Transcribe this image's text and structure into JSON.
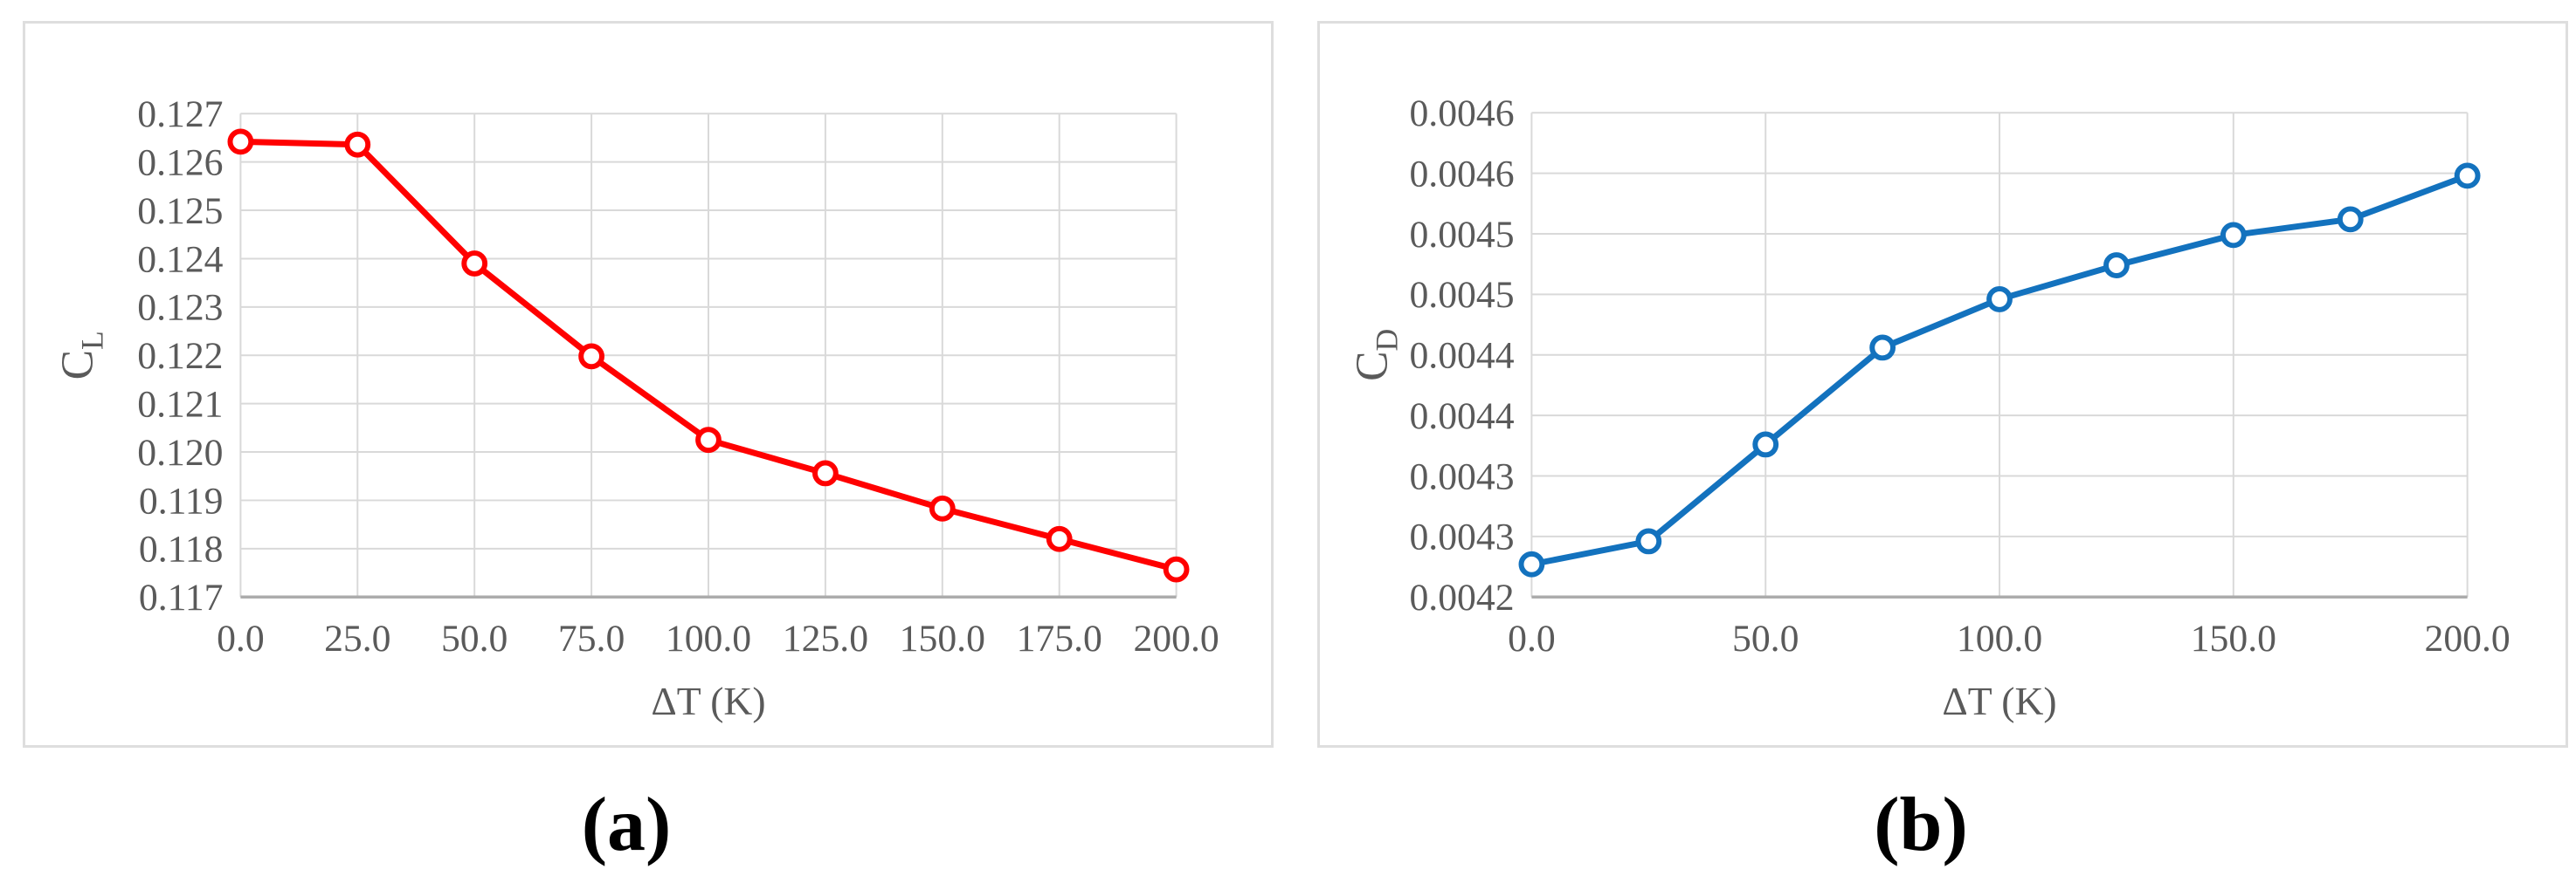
{
  "figure": {
    "background": "#ffffff",
    "border_color": "#dedede",
    "gridline_color": "#d9d9d9",
    "axis_line_color": "#acacac",
    "tick_text_color": "#5a5a5a",
    "caption_color": "#000000"
  },
  "chart_data": [
    {
      "type": "line",
      "caption": "(a)",
      "series": [
        {
          "name": "CL",
          "values": [
            0.1264,
            0.1264,
            0.1239,
            0.122,
            0.1203,
            0.1196,
            0.1188,
            0.1182,
            0.1176
          ]
        }
      ],
      "x": [
        0,
        25,
        50,
        75,
        100,
        125,
        150,
        175,
        200
      ],
      "y_plot_values": [
        0.12642,
        0.12636,
        0.1239,
        0.12198,
        0.12025,
        0.11956,
        0.11883,
        0.1182,
        0.11757
      ],
      "title": "",
      "xlabel": "ΔT (K)",
      "ylabel_main": "C",
      "ylabel_sub": "L",
      "xlim": [
        0,
        200
      ],
      "ylim": [
        0.117,
        0.127
      ],
      "grid": true,
      "legend": "none",
      "marker": "open-circle",
      "line_color": "#ff0000",
      "x_ticks": [
        {
          "value": 0,
          "label": "0.0"
        },
        {
          "value": 25,
          "label": "25.0"
        },
        {
          "value": 50,
          "label": "50.0"
        },
        {
          "value": 75,
          "label": "75.0"
        },
        {
          "value": 100,
          "label": "100.0"
        },
        {
          "value": 125,
          "label": "125.0"
        },
        {
          "value": 150,
          "label": "150.0"
        },
        {
          "value": 175,
          "label": "175.0"
        },
        {
          "value": 200,
          "label": "200.0"
        }
      ],
      "y_ticks": [
        {
          "value": 0.127,
          "label": "0.127"
        },
        {
          "value": 0.126,
          "label": "0.126"
        },
        {
          "value": 0.125,
          "label": "0.125"
        },
        {
          "value": 0.124,
          "label": "0.124"
        },
        {
          "value": 0.123,
          "label": "0.123"
        },
        {
          "value": 0.122,
          "label": "0.122"
        },
        {
          "value": 0.121,
          "label": "0.121"
        },
        {
          "value": 0.12,
          "label": "0.120"
        },
        {
          "value": 0.119,
          "label": "0.119"
        },
        {
          "value": 0.118,
          "label": "0.118"
        },
        {
          "value": 0.117,
          "label": "0.117"
        }
      ]
    },
    {
      "type": "line",
      "caption": "(b)",
      "series": [
        {
          "name": "CD",
          "values": [
            0.00428,
            0.0043,
            0.00438,
            0.00446,
            0.0045,
            0.00452,
            0.00455,
            0.00456,
            0.0046
          ]
        }
      ],
      "x": [
        0,
        25,
        50,
        75,
        100,
        125,
        150,
        175,
        200
      ],
      "y_plot_values": [
        0.004277,
        0.004296,
        0.004376,
        0.004456,
        0.004496,
        0.004524,
        0.004549,
        0.004562,
        0.004598
      ],
      "title": "",
      "xlabel": "ΔT (K)",
      "ylabel_main": "C",
      "ylabel_sub": "D",
      "xlim": [
        0,
        200
      ],
      "ylim": [
        0.00425,
        0.00465
      ],
      "grid": true,
      "legend": "none",
      "marker": "open-circle",
      "line_color": "#1372be",
      "x_ticks": [
        {
          "value": 0,
          "label": "0.0"
        },
        {
          "value": 50,
          "label": "50.0"
        },
        {
          "value": 100,
          "label": "100.0"
        },
        {
          "value": 150,
          "label": "150.0"
        },
        {
          "value": 200,
          "label": "200.0"
        }
      ],
      "y_ticks": [
        {
          "value": 0.00465,
          "label": "0.0046"
        },
        {
          "value": 0.0046,
          "label": "0.0046"
        },
        {
          "value": 0.00455,
          "label": "0.0045"
        },
        {
          "value": 0.0045,
          "label": "0.0045"
        },
        {
          "value": 0.00445,
          "label": "0.0044"
        },
        {
          "value": 0.0044,
          "label": "0.0044"
        },
        {
          "value": 0.00435,
          "label": "0.0043"
        },
        {
          "value": 0.0043,
          "label": "0.0043"
        },
        {
          "value": 0.00425,
          "label": "0.0042"
        }
      ]
    }
  ]
}
